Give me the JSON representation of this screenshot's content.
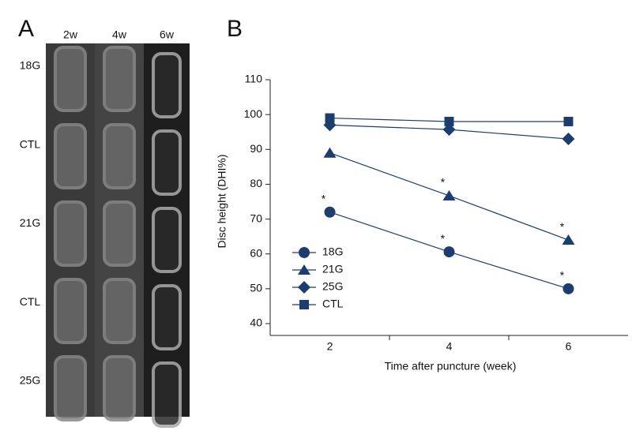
{
  "panel_a": {
    "label": "A",
    "columns": [
      "2w",
      "4w",
      "6w"
    ],
    "rows": [
      "18G",
      "CTL",
      "21G",
      "CTL",
      "25G"
    ]
  },
  "chart_data": {
    "type": "line",
    "panel_label": "B",
    "x_label": "Time after puncture (week)",
    "y_label": "Disc height (DHI%)",
    "categories": [
      "2",
      "4",
      "6"
    ],
    "series": [
      {
        "name": "18G",
        "color": "#1c3d6e",
        "marker": "circle",
        "values": [
          72,
          60.6,
          50
        ],
        "significance": [
          "*",
          "*",
          "*"
        ]
      },
      {
        "name": "21G",
        "color": "#1c3d6e",
        "marker": "triangle",
        "values": [
          89,
          76.7,
          64
        ],
        "significance": [
          null,
          "*",
          "*"
        ]
      },
      {
        "name": "25G",
        "color": "#1c3d6e",
        "marker": "diamond",
        "values": [
          97,
          95.7,
          93
        ]
      },
      {
        "name": "CTL",
        "color": "#1c3d6e",
        "marker": "square",
        "values": [
          99,
          98,
          98
        ]
      }
    ],
    "ylim": [
      40,
      110
    ],
    "yticks": [
      40,
      50,
      60,
      70,
      80,
      90,
      100,
      110
    ],
    "legend": "lower-left"
  }
}
